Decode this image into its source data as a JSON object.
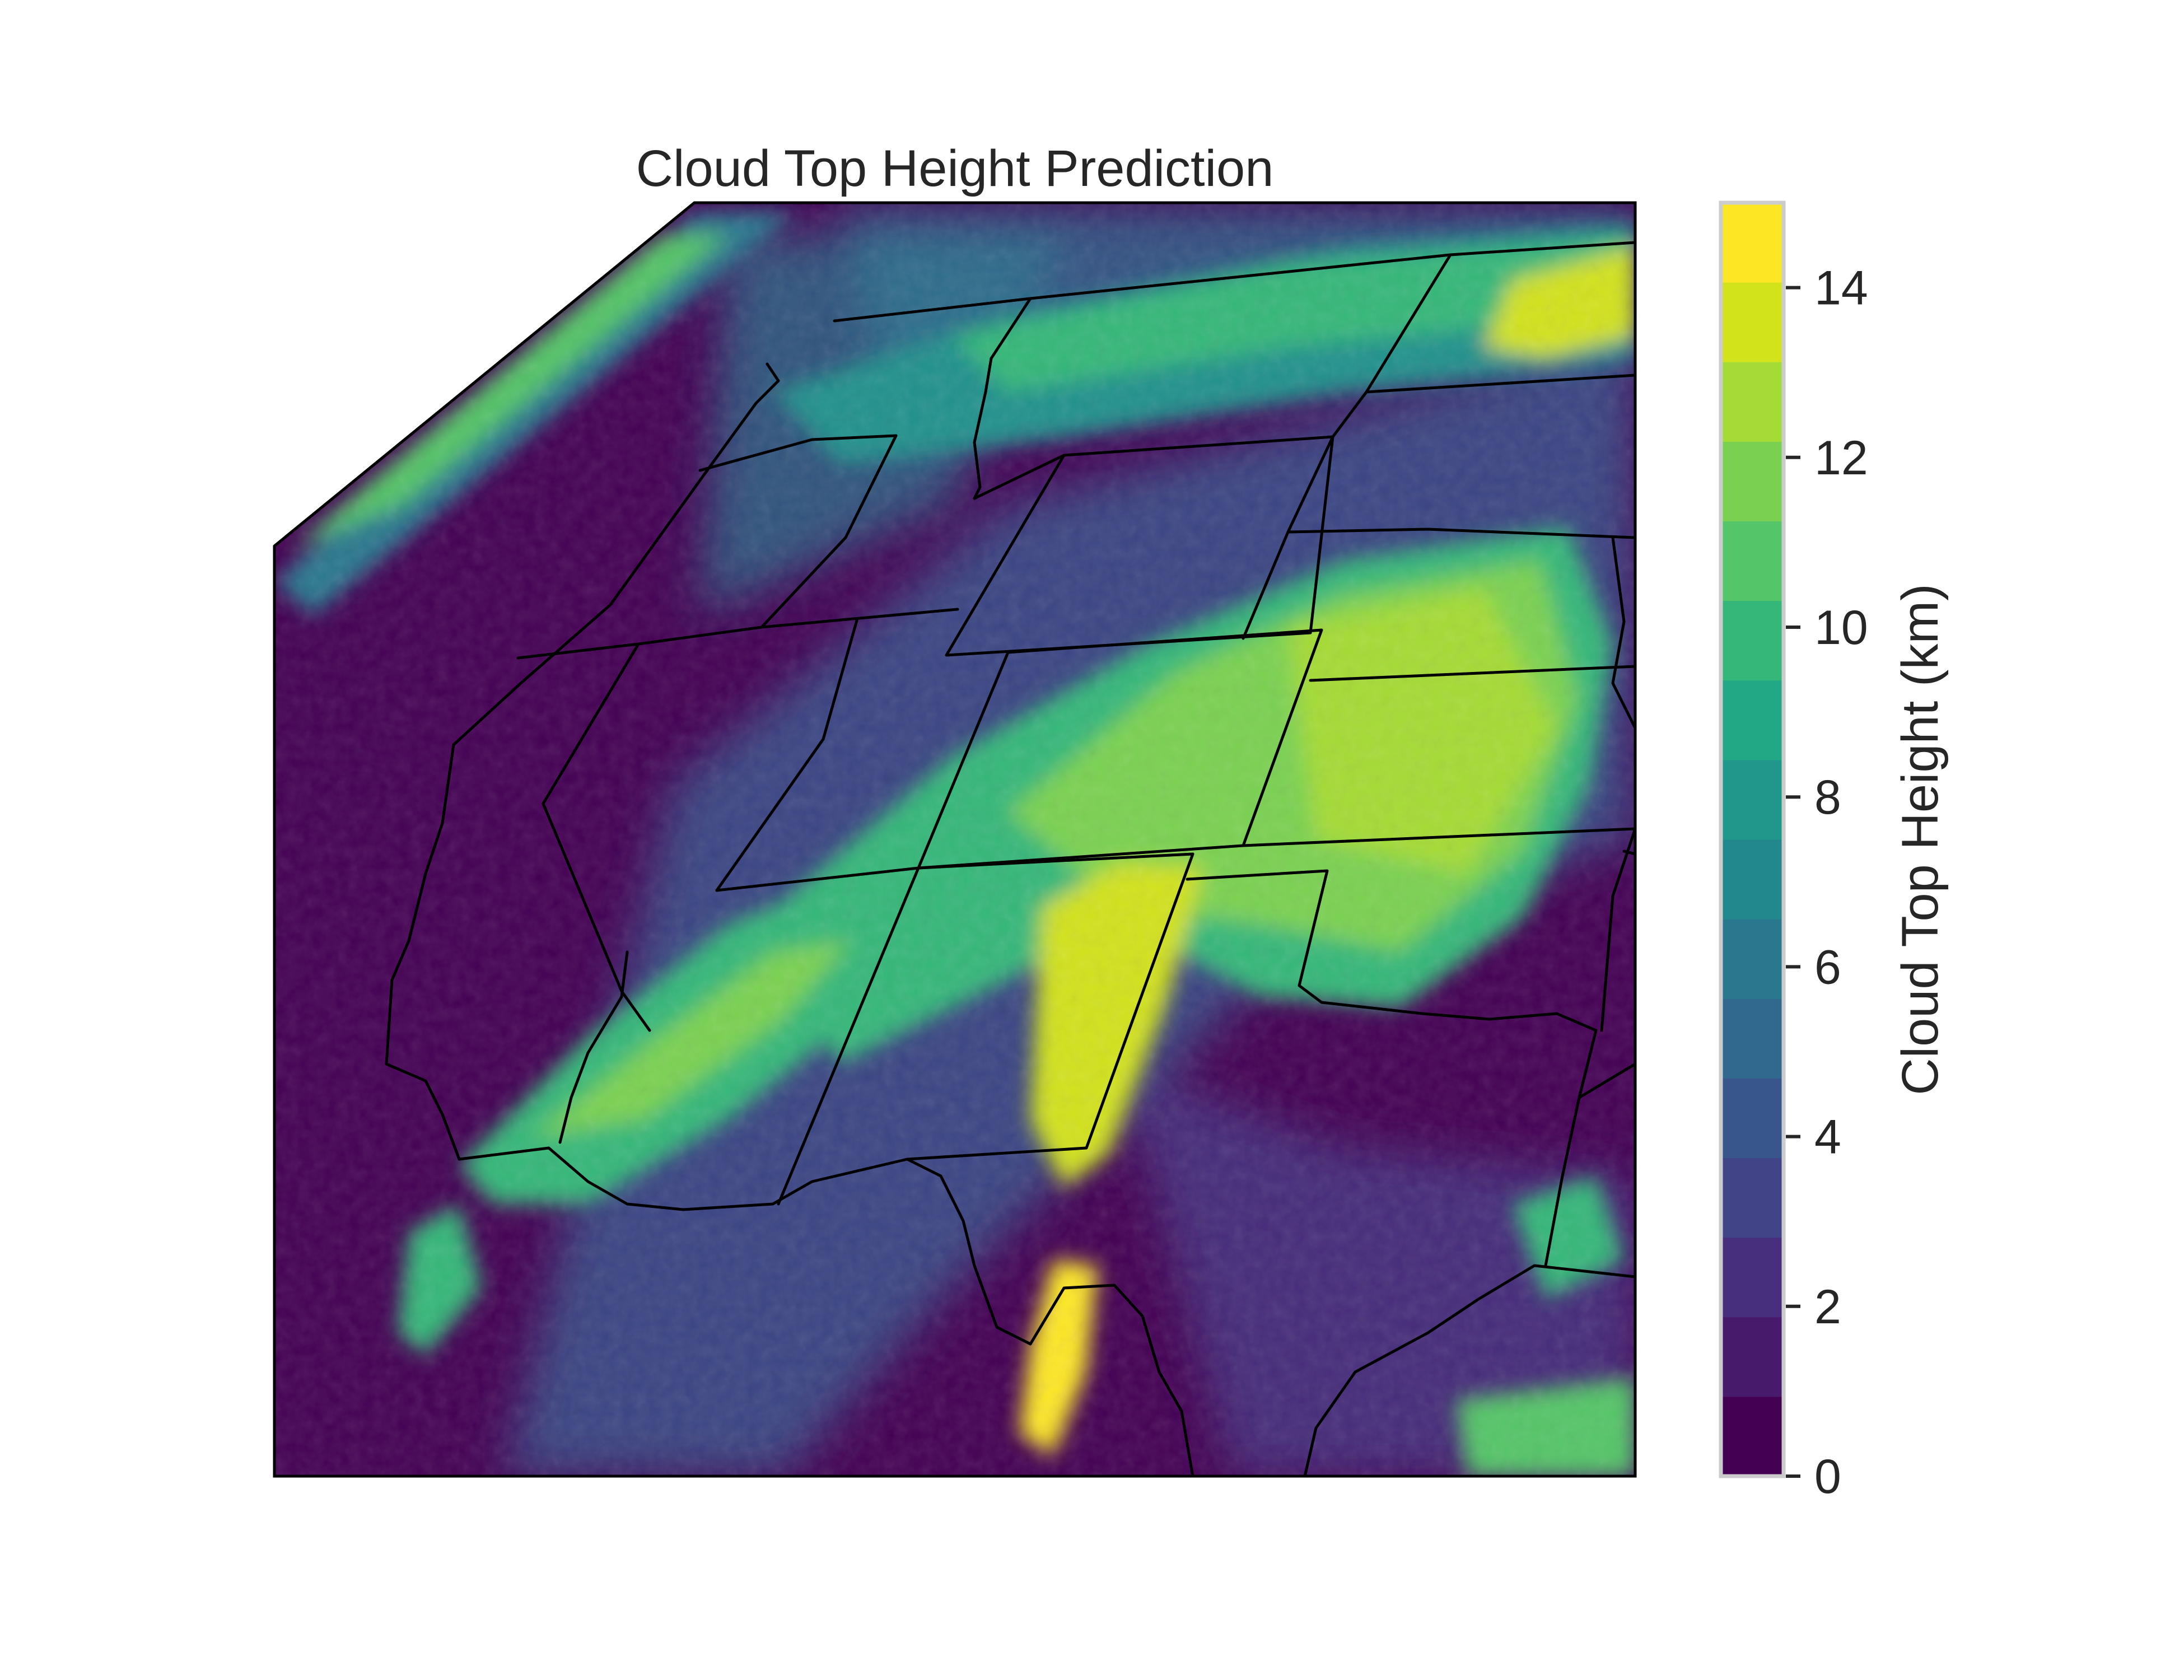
{
  "figure": {
    "title": "Cloud Top Height Prediction"
  },
  "colorbar": {
    "label": "Cloud Top Height (km)",
    "units": "km",
    "min": 0,
    "max": 15,
    "ticks": [
      0,
      2,
      4,
      6,
      8,
      10,
      12,
      14
    ],
    "colormap": "viridis",
    "levels": [
      "#440154",
      "#481a6c",
      "#472f7d",
      "#414487",
      "#39568c",
      "#31688e",
      "#2a788e",
      "#23888e",
      "#1f988b",
      "#22a884",
      "#35b779",
      "#54c568",
      "#7ad151",
      "#a5db36",
      "#d2e21b",
      "#fde725"
    ]
  },
  "colors": {
    "background": "#440154",
    "borders": "#000000"
  }
}
